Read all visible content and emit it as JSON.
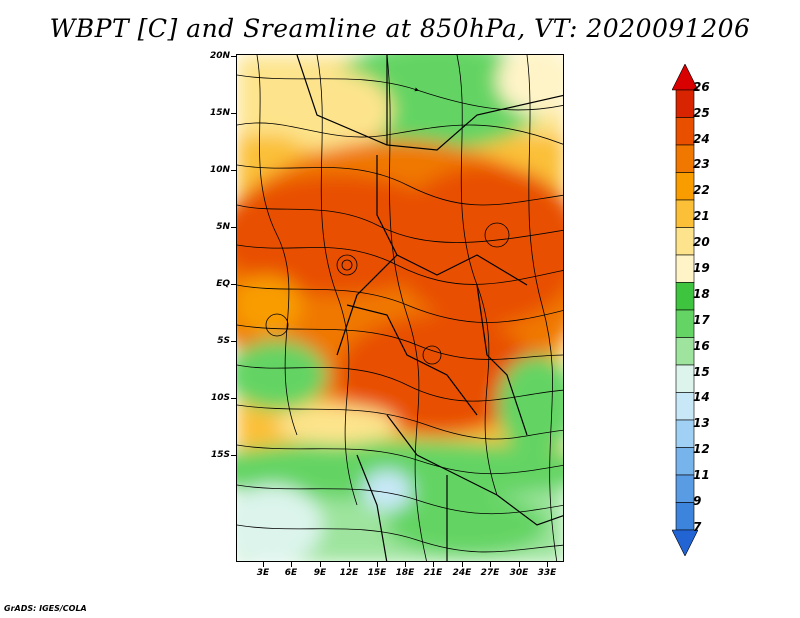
{
  "title": "WBPT [C] and Sreamline at 850hPa, VT: 2020091206",
  "map": {
    "lat_labels": [
      "20N",
      "15N",
      "10N",
      "5N",
      "EQ",
      "5S",
      "10S",
      "15S"
    ],
    "lon_labels": [
      "3E",
      "6E",
      "9E",
      "12E",
      "15E",
      "18E",
      "21E",
      "24E",
      "27E",
      "30E",
      "33E"
    ]
  },
  "colorbar": {
    "labels": [
      "26",
      "25",
      "24",
      "23",
      "22",
      "21",
      "20",
      "19",
      "18",
      "17",
      "16",
      "15",
      "14",
      "13",
      "12",
      "11",
      "9",
      "7"
    ],
    "colors": [
      "#d80000",
      "#d82400",
      "#e85000",
      "#f07800",
      "#f89c00",
      "#fbc038",
      "#fde48c",
      "#fff4c8",
      "#3ec43e",
      "#64d464",
      "#9ee49e",
      "#dcf4ec",
      "#c8e8f8",
      "#a0d0f4",
      "#78b4ec",
      "#5a9ce4",
      "#3c84dc",
      "#2264d4"
    ]
  },
  "footer": "GrADS: IGES/COLA"
}
